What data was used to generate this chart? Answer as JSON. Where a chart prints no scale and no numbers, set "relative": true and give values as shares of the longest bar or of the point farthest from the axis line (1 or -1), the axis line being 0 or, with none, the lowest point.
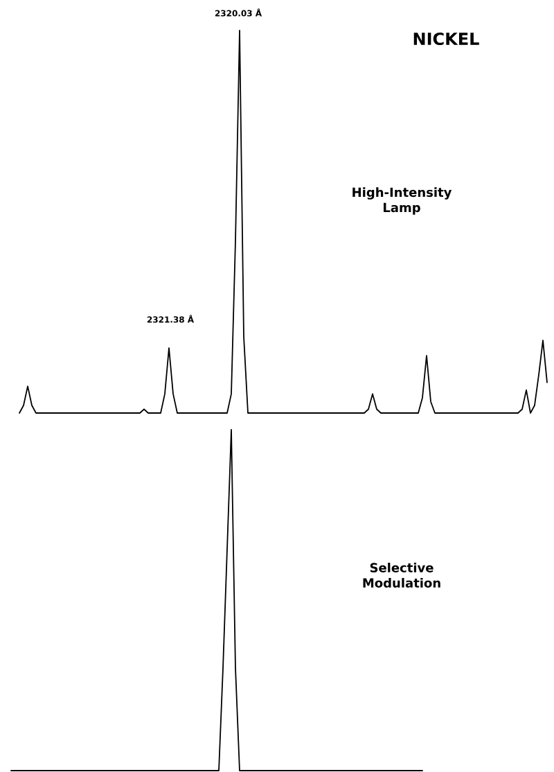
{
  "chart_data": [
    {
      "type": "line",
      "title": "NICKEL",
      "relative": true,
      "annotations": [
        "2320.03 Å",
        "2321.38 Å"
      ],
      "categories": [
        null,
        null,
        null,
        null,
        null,
        null,
        null,
        null,
        null,
        null,
        null,
        null,
        null,
        null,
        null,
        null,
        null,
        null,
        null,
        null,
        null,
        null,
        null,
        null,
        null,
        null,
        null,
        null,
        null,
        null,
        null,
        null,
        null,
        null,
        null,
        null,
        null,
        null,
        null,
        null,
        null,
        null,
        null,
        null,
        null,
        null,
        null,
        null,
        null,
        null,
        null,
        null,
        null,
        null,
        null,
        null,
        null,
        null,
        null,
        null,
        null,
        null,
        null,
        null,
        null,
        null,
        null,
        null,
        null,
        null,
        null,
        null,
        null,
        null,
        null,
        null,
        null,
        null,
        null,
        null,
        null,
        null,
        null,
        null,
        null,
        null,
        null,
        null,
        null,
        null,
        null,
        null,
        null,
        null,
        null,
        null,
        null,
        null,
        null,
        null,
        null,
        null,
        null,
        null,
        null,
        null,
        null,
        null,
        null,
        null,
        null,
        null,
        null,
        null,
        null,
        null,
        null,
        null,
        null,
        null,
        null,
        null,
        null,
        null,
        null,
        null,
        null,
        null,
        null,
        null
      ],
      "series": [
        {
          "name": "High-Intensity Lamp",
          "color": "#000000",
          "values": [
            null,
            null,
            0,
            0.02,
            0.07,
            0.02,
            0,
            0,
            0,
            0,
            0,
            0,
            0,
            0,
            0,
            0,
            0,
            0,
            0,
            0,
            0,
            0,
            0,
            0,
            0,
            0,
            0,
            0,
            0,
            0,
            0,
            0,
            0.01,
            0,
            0,
            0,
            0,
            0.05,
            0.17,
            0.05,
            0,
            0,
            0,
            0,
            0,
            0,
            0,
            0,
            0,
            0,
            0,
            0,
            0,
            0.05,
            0.45,
            1,
            0.2,
            0,
            0,
            0,
            0,
            0,
            0,
            0,
            0,
            0,
            0,
            0,
            0,
            0,
            0,
            0,
            0,
            0,
            0,
            0,
            0,
            0,
            0,
            0,
            0,
            0,
            0,
            0,
            0,
            0,
            0.01,
            0.05,
            0.01,
            0,
            0,
            0,
            0,
            0,
            0,
            0,
            0,
            0,
            0,
            0.04,
            0.15,
            0.03,
            0,
            0,
            0,
            0,
            0,
            0,
            0,
            0,
            0,
            0,
            0,
            0,
            0,
            0,
            0,
            0,
            0,
            0,
            0,
            0,
            0,
            0.01,
            0.06,
            0,
            0.02,
            0.1,
            0.19,
            0.08
          ]
        }
      ]
    },
    {
      "type": "line",
      "relative": true,
      "categories": [
        null,
        null,
        null,
        null,
        null,
        null,
        null,
        null,
        null,
        null,
        null,
        null,
        null,
        null,
        null,
        null,
        null,
        null,
        null,
        null,
        null,
        null,
        null,
        null,
        null,
        null,
        null,
        null,
        null,
        null,
        null,
        null,
        null,
        null,
        null,
        null,
        null,
        null,
        null,
        null,
        null,
        null,
        null,
        null,
        null,
        null,
        null,
        null,
        null,
        null,
        null,
        null,
        null,
        null,
        null,
        null,
        null,
        null,
        null,
        null,
        null,
        null,
        null,
        null,
        null,
        null,
        null,
        null,
        null,
        null,
        null,
        null,
        null,
        null,
        null,
        null,
        null,
        null,
        null,
        null,
        null,
        null,
        null,
        null,
        null,
        null,
        null,
        null,
        null,
        null,
        null,
        null,
        null,
        null,
        null,
        null,
        null,
        null,
        null,
        null,
        null,
        null,
        null,
        null,
        null,
        null,
        null,
        null,
        null,
        null,
        null,
        null,
        null,
        null,
        null,
        null,
        null,
        null,
        null,
        null,
        null,
        null,
        null,
        null,
        null,
        null,
        null,
        null,
        null,
        null
      ],
      "series": [
        {
          "name": "Selective Modulation",
          "color": "#000000",
          "values": [
            0,
            0,
            0,
            0,
            0,
            0,
            0,
            0,
            0,
            0,
            0,
            0,
            0,
            0,
            0,
            0,
            0,
            0,
            0,
            0,
            0,
            0,
            0,
            0,
            0,
            0,
            0,
            0,
            0,
            0,
            0,
            0,
            0,
            0,
            0,
            0,
            0,
            0,
            0,
            0,
            0,
            0,
            0,
            0,
            0,
            0,
            0,
            0,
            0,
            0,
            0,
            0.3,
            0.65,
            1,
            0.3,
            0,
            0,
            0,
            0,
            0,
            0,
            0,
            0,
            0,
            0,
            0,
            0,
            0,
            0,
            0,
            0,
            0,
            0,
            0,
            0,
            0,
            0,
            0,
            0,
            0,
            0,
            0,
            0,
            0,
            0,
            0,
            0,
            0,
            0,
            0,
            0,
            0,
            0,
            0,
            0,
            0,
            0,
            0,
            0,
            0,
            null,
            null,
            null,
            null,
            null,
            null,
            null,
            null,
            null,
            null,
            null,
            null,
            null,
            null,
            null,
            null,
            null,
            null,
            null,
            null,
            null,
            null,
            null,
            null,
            null,
            null,
            null,
            null,
            null,
            null
          ]
        }
      ]
    }
  ]
}
